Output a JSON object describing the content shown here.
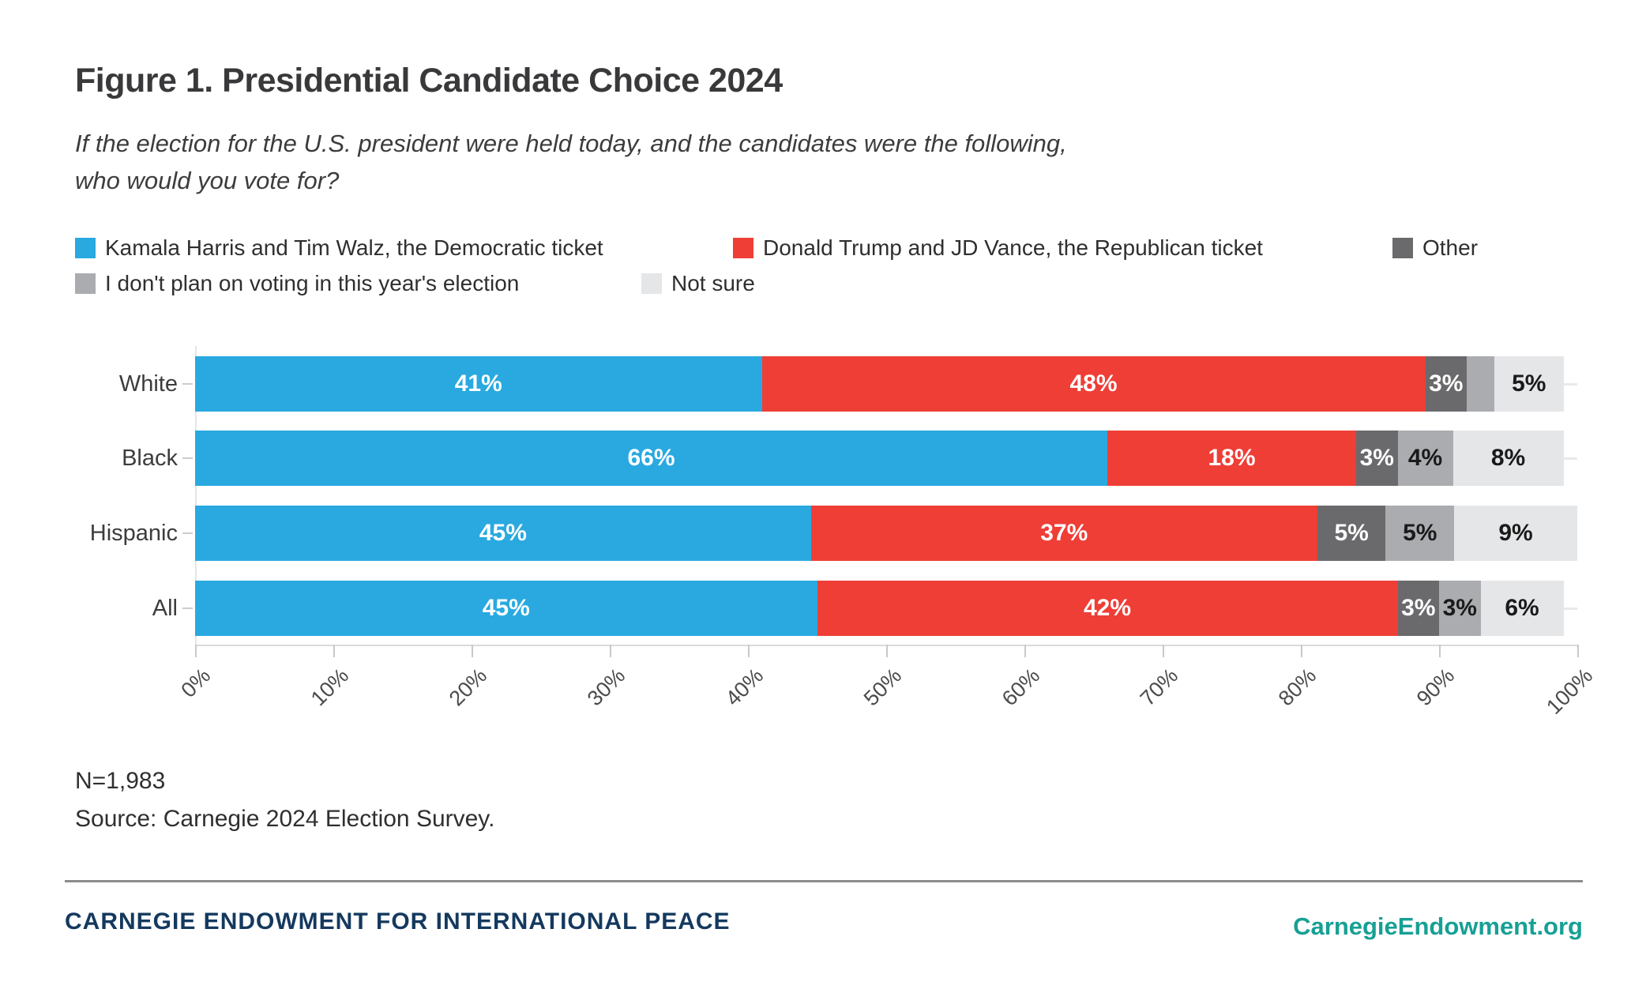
{
  "figure": {
    "title": "Figure 1. Presidential Candidate Choice 2024",
    "subtitle_lines": [
      "If the election for the U.S. president were held today, and the candidates were the following,",
      "who would you vote for?"
    ],
    "n_label": "N=1,983",
    "source": "Source: Carnegie 2024 Election Survey."
  },
  "footer": {
    "org": "CARNEGIE ENDOWMENT FOR INTERNATIONAL PEACE",
    "site": "CarnegieEndowment.org"
  },
  "colors": {
    "democratic_blue": "#29a9e0",
    "republican_red": "#ee3e36",
    "other_dark_gray": "#6a6a6d",
    "dont_plan_gray": "#aaacaf",
    "not_sure_light_gray": "#e5e6e8",
    "title_text": "#39393b",
    "footer_navy": "#14395f",
    "footer_teal": "#17a095"
  },
  "chart_data": {
    "type": "bar",
    "orientation": "horizontal-stacked",
    "title": "Figure 1. Presidential Candidate Choice 2024",
    "xlabel": "",
    "ylabel": "",
    "categories": [
      "White",
      "Black",
      "Hispanic",
      "All"
    ],
    "series": [
      {
        "name": "Kamala Harris and Tim Walz, the Democratic ticket",
        "color": "#29a9e0",
        "label_color": "#ffffff",
        "values": [
          41,
          66,
          45,
          45
        ]
      },
      {
        "name": "Donald Trump and JD Vance, the Republican ticket",
        "color": "#ee3e36",
        "label_color": "#ffffff",
        "values": [
          48,
          18,
          37,
          42
        ]
      },
      {
        "name": "Other",
        "color": "#6a6a6d",
        "label_color": "#ffffff",
        "values": [
          3,
          3,
          5,
          3
        ]
      },
      {
        "name": "I don't plan on voting in this year's election",
        "color": "#aaacaf",
        "label_color": "#1a1a1a",
        "values": [
          2,
          4,
          5,
          3
        ]
      },
      {
        "name": "Not sure",
        "color": "#e5e6e8",
        "label_color": "#1a1a1a",
        "values": [
          5,
          8,
          9,
          6
        ]
      }
    ],
    "label_suffix": "%",
    "min_label_value": 3,
    "x_ticks": [
      "0%",
      "10%",
      "20%",
      "30%",
      "40%",
      "50%",
      "60%",
      "70%",
      "80%",
      "90%",
      "100%"
    ],
    "xlim": [
      0,
      100
    ],
    "grid": false,
    "legend_position": "top"
  }
}
